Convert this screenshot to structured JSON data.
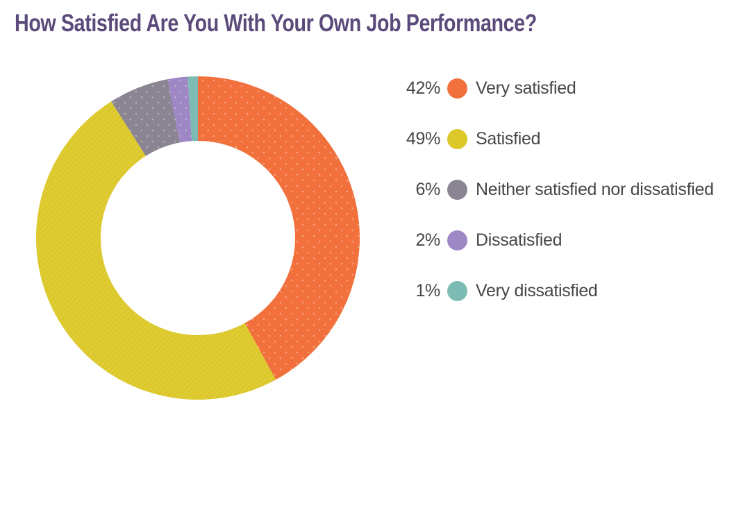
{
  "title": "How Satisfied Are You With Your Own Job Performance?",
  "colors": {
    "title": "#5c4a7a",
    "legend_text": "#47474b",
    "background": "#ffffff"
  },
  "chart_data": {
    "type": "pie",
    "subtype": "donut",
    "title": "How Satisfied Are You With Your Own Job Performance?",
    "categories": [
      "Very satisfied",
      "Satisfied",
      "Neither satisfied nor dissatisfied",
      "Dissatisfied",
      "Very dissatisfied"
    ],
    "values": [
      42,
      49,
      6,
      2,
      1
    ],
    "unit": "%",
    "colors": [
      "#f1703c",
      "#dcc829",
      "#8b8492",
      "#9e87c5",
      "#7cbcb4"
    ],
    "textures": [
      "dots",
      "lines",
      "dots",
      "dots",
      "none"
    ],
    "start_angle_deg": 0,
    "direction": "clockwise",
    "inner_radius_ratio": 0.6,
    "legend_position": "right",
    "labels_on_slices": false
  },
  "legend": {
    "items": [
      {
        "pct": "42%",
        "label": "Very satisfied",
        "color": "#f1703c"
      },
      {
        "pct": "49%",
        "label": "Satisfied",
        "color": "#dcc829"
      },
      {
        "pct": "6%",
        "label": "Neither satisfied nor dissatisfied",
        "color": "#8b8492"
      },
      {
        "pct": "2%",
        "label": "Dissatisfied",
        "color": "#9e87c5"
      },
      {
        "pct": "1%",
        "label": "Very dissatisfied",
        "color": "#7cbcb4"
      }
    ]
  }
}
